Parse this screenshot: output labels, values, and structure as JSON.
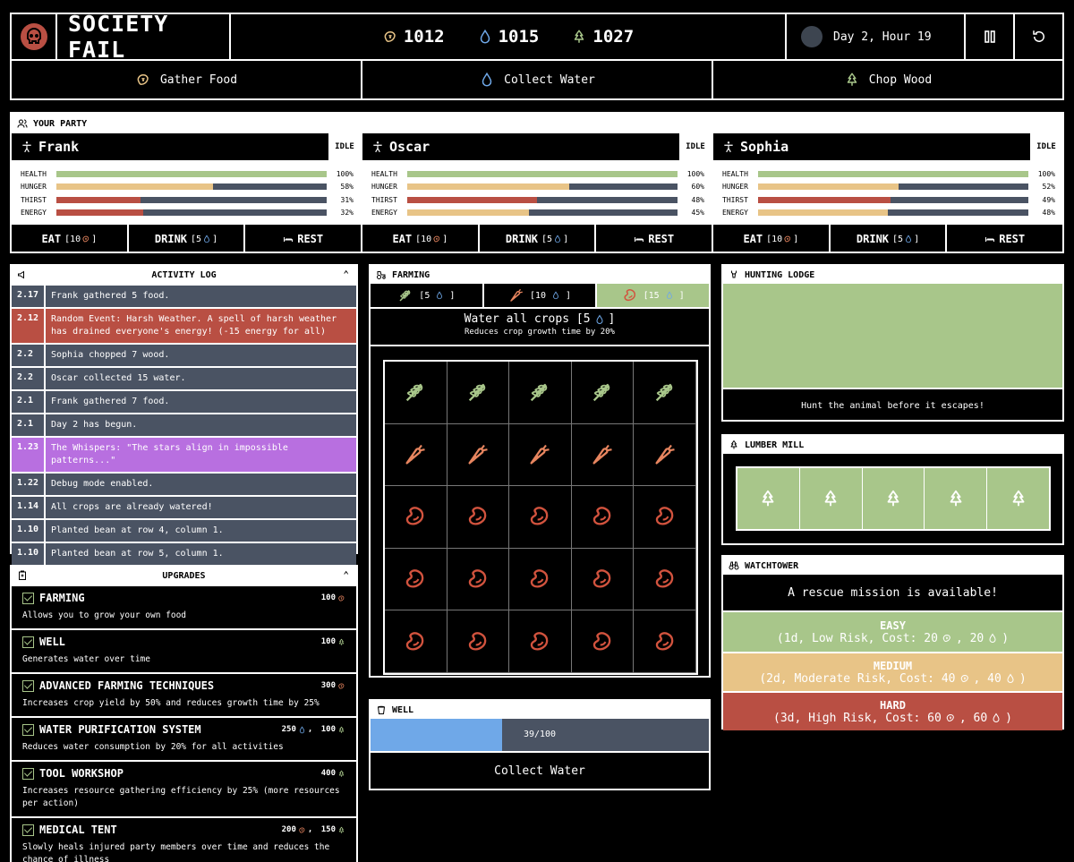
{
  "app": {
    "title": "SOCIETY FAIL",
    "resources": {
      "food": "1012",
      "water": "1015",
      "wood": "1027"
    },
    "day_label": "Day 2, Hour 19"
  },
  "actions": {
    "gather_food": "Gather Food",
    "collect_water": "Collect Water",
    "chop_wood": "Chop Wood"
  },
  "party": {
    "title": "YOUR PARTY",
    "stat_labels": {
      "health": "HEALTH",
      "hunger": "HUNGER",
      "thirst": "THIRST",
      "energy": "ENERGY"
    },
    "buttons": {
      "eat": "EAT",
      "eat_cost": "[10",
      "drink": "DRINK",
      "drink_cost": "[5",
      "close": "]",
      "rest": "REST"
    },
    "members": [
      {
        "name": "Frank",
        "status": "IDLE",
        "health": "100%",
        "hunger": "58%",
        "thirst": "31%",
        "energy": "32%"
      },
      {
        "name": "Oscar",
        "status": "IDLE",
        "health": "100%",
        "hunger": "60%",
        "thirst": "48%",
        "energy": "45%"
      },
      {
        "name": "Sophia",
        "status": "IDLE",
        "health": "100%",
        "hunger": "52%",
        "thirst": "49%",
        "energy": "48%"
      }
    ]
  },
  "log": {
    "title": "ACTIVITY LOG",
    "entries": [
      {
        "t": "2.17",
        "m": "Frank gathered 5 food."
      },
      {
        "t": "2.12",
        "m": "Random Event: Harsh Weather. A spell of harsh weather has drained everyone's energy! (-15 energy for all)"
      },
      {
        "t": "2.2",
        "m": "Sophia chopped 7 wood."
      },
      {
        "t": "2.2",
        "m": "Oscar collected 15 water."
      },
      {
        "t": "2.1",
        "m": "Frank gathered 7 food."
      },
      {
        "t": "2.1",
        "m": "Day 2 has begun."
      },
      {
        "t": "1.23",
        "m": "The Whispers: \"The stars align in impossible patterns...\""
      },
      {
        "t": "1.22",
        "m": "Debug mode enabled."
      },
      {
        "t": "1.14",
        "m": "All crops are already watered!"
      },
      {
        "t": "1.10",
        "m": "Planted bean at row 4, column 1."
      },
      {
        "t": "1.10",
        "m": "Planted bean at row 5, column 1."
      }
    ]
  },
  "upgrades": {
    "title": "UPGRADES",
    "items": [
      {
        "name": "FARMING",
        "cost": "100",
        "desc": "Allows you to grow your own food"
      },
      {
        "name": "WELL",
        "cost": "100",
        "desc": "Generates water over time"
      },
      {
        "name": "ADVANCED FARMING TECHNIQUES",
        "cost": "300",
        "desc": "Increases crop yield by 50% and reduces growth time by 25%"
      },
      {
        "name": "WATER PURIFICATION SYSTEM",
        "cost_a": "250",
        "cost_b": "100",
        "desc": "Reduces water consumption by 20% for all activities"
      },
      {
        "name": "TOOL WORKSHOP",
        "cost": "400",
        "desc": "Increases resource gathering efficiency by 25% (more resources per action)"
      },
      {
        "name": "MEDICAL TENT",
        "cost_a": "200",
        "cost_b": "150",
        "desc": "Slowly heals injured party members over time and reduces the chance of illness"
      }
    ],
    "sep": ","
  },
  "farming": {
    "title": "FARMING",
    "seeds": [
      {
        "cost": "[5"
      },
      {
        "cost": "[10"
      },
      {
        "cost": "[15"
      }
    ],
    "seed_close": "]",
    "water_all": "Water all crops [5",
    "water_all_close": "]",
    "water_sub": "Reduces crop growth time by 20%"
  },
  "well": {
    "title": "WELL",
    "level": "39/100",
    "fill": 0.39,
    "button": "Collect Water"
  },
  "hunting": {
    "title": "HUNTING LODGE",
    "text": "Hunt the animal before it escapes!"
  },
  "lumber": {
    "title": "LUMBER MILL"
  },
  "watchtower": {
    "title": "WATCHTOWER",
    "headline": "A rescue mission is available!",
    "missions": [
      {
        "level": "EASY",
        "detail": "(1d, Low Risk, Cost: 20",
        "mid": ", 20",
        "end": ")"
      },
      {
        "level": "MEDIUM",
        "detail": "(2d, Moderate Risk, Cost: 40",
        "mid": ", 40",
        "end": ")"
      },
      {
        "level": "HARD",
        "detail": "(3d, High Risk, Cost: 60",
        "mid": ", 60",
        "end": ")"
      }
    ]
  },
  "stat_values": {
    "frank": {
      "health": 1.0,
      "hunger": 0.58,
      "thirst": 0.31,
      "energy": 0.32
    },
    "oscar": {
      "health": 1.0,
      "hunger": 0.6,
      "thirst": 0.48,
      "energy": 0.45
    },
    "sophia": {
      "health": 1.0,
      "hunger": 0.52,
      "thirst": 0.49,
      "energy": 0.48
    }
  },
  "colors": {
    "green": "#a8c68a",
    "tan": "#e8c487",
    "red": "#b94f43",
    "slate": "#4a5363",
    "purple": "#b86fe0",
    "blue": "#6fa8e8",
    "food": "#e7855f"
  },
  "icons": [
    "skull-icon",
    "food-icon",
    "water-icon",
    "tree-icon",
    "moon-icon",
    "pause-icon",
    "restart-icon",
    "person-icon",
    "bed-icon",
    "wheat-icon",
    "carrot-icon",
    "bean-icon",
    "checkbox-icon",
    "chevron-up-icon"
  ]
}
